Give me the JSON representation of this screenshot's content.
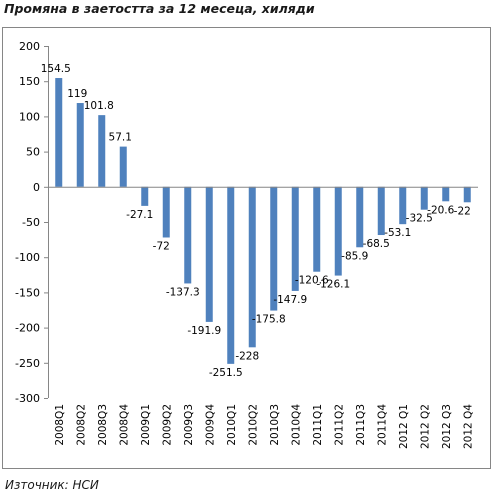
{
  "title": "Промяна в заетостта за 12 месеца, хиляди",
  "source": "Източник: НСИ",
  "chart_data": {
    "type": "bar",
    "categories": [
      "2008Q1",
      "2008Q2",
      "2008Q3",
      "2008Q4",
      "2009Q1",
      "2009Q2",
      "2009Q3",
      "2009Q4",
      "2010Q1",
      "2010Q2",
      "2010Q3",
      "2010Q4",
      "2011Q1",
      "2011Q2",
      "2011Q3",
      "2011Q4",
      "2012 Q1",
      "2012 Q2",
      "2012 Q3",
      "2012 Q4"
    ],
    "values": [
      154.5,
      119,
      101.8,
      57.1,
      -27.1,
      -72,
      -137.3,
      -191.9,
      -251.5,
      -228,
      -175.8,
      -147.9,
      -120.6,
      -126.1,
      -85.9,
      -68.5,
      -53.1,
      -32.5,
      -20.6,
      -22
    ],
    "data_labels": [
      "154.5",
      "119",
      "101.8",
      "57.1",
      "-27.1",
      "-72",
      "-137.3",
      "-191.9",
      "-251.5",
      "-228",
      "-175.8",
      "-147.9",
      "-120.6",
      "-126.1",
      "-85.9",
      "-68.5",
      "-53.1",
      "-32.5",
      "-20.6",
      "-22"
    ],
    "yticks": [
      200,
      150,
      100,
      50,
      0,
      -50,
      -100,
      -150,
      -200,
      -250,
      -300
    ],
    "ylim": [
      -300,
      200
    ],
    "grid": false,
    "legend": "none",
    "bar_color": "#4f81bd",
    "axis_color": "#868686",
    "frame_color": "#868686"
  }
}
